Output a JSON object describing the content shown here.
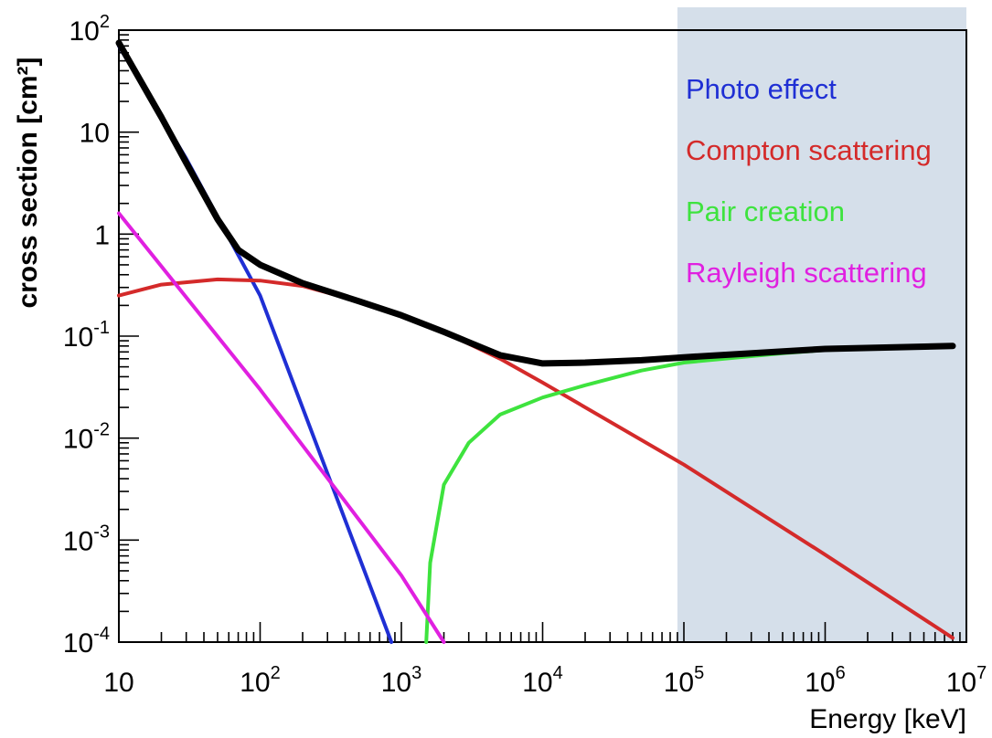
{
  "chart_data": {
    "type": "line",
    "x_scale": "log",
    "y_scale": "log",
    "xlim": [
      10,
      10000000
    ],
    "ylim": [
      0.0001,
      100
    ],
    "xlabel": "Energy [keV]",
    "ylabel": "cross section [cm²]",
    "highlight_region": {
      "x_from": 90000,
      "x_to": 10000000,
      "color": "#d5dfea"
    },
    "x_ticks": [
      {
        "value": 10,
        "base": "10",
        "exp": ""
      },
      {
        "value": 100,
        "base": "10",
        "exp": "2"
      },
      {
        "value": 1000,
        "base": "10",
        "exp": "3"
      },
      {
        "value": 10000,
        "base": "10",
        "exp": "4"
      },
      {
        "value": 100000,
        "base": "10",
        "exp": "5"
      },
      {
        "value": 1000000,
        "base": "10",
        "exp": "6"
      },
      {
        "value": 10000000,
        "base": "10",
        "exp": "7"
      }
    ],
    "y_ticks": [
      {
        "value": 100,
        "base": "10",
        "exp": "2"
      },
      {
        "value": 10,
        "base": "10",
        "exp": ""
      },
      {
        "value": 1,
        "base": "1",
        "exp": ""
      },
      {
        "value": 0.1,
        "base": "10",
        "exp": "-1"
      },
      {
        "value": 0.01,
        "base": "10",
        "exp": "-2"
      },
      {
        "value": 0.001,
        "base": "10",
        "exp": "-3"
      },
      {
        "value": 0.0001,
        "base": "10",
        "exp": "-4"
      }
    ],
    "legend_position": "top-right",
    "series": [
      {
        "name": "Photo effect",
        "color": "#1f2fd4",
        "x": [
          10,
          20,
          30,
          100,
          300,
          850
        ],
        "y": [
          70,
          14,
          5.5,
          0.25,
          0.0045,
          0.0001
        ]
      },
      {
        "name": "Compton scattering",
        "color": "#d42a2a",
        "x": [
          10,
          20,
          50,
          100,
          200,
          500,
          1000,
          2000,
          5000,
          10000,
          100000,
          1000000,
          8000000
        ],
        "y": [
          0.25,
          0.32,
          0.36,
          0.35,
          0.31,
          0.22,
          0.16,
          0.11,
          0.06,
          0.035,
          0.0055,
          0.00072,
          0.00011
        ]
      },
      {
        "name": "Pair creation",
        "color": "#3ee33e",
        "x": [
          1500,
          1600,
          2000,
          3000,
          5000,
          10000,
          20000,
          50000,
          100000,
          500000,
          1000000,
          8000000
        ],
        "y": [
          0.0001,
          0.0006,
          0.0035,
          0.009,
          0.017,
          0.025,
          0.033,
          0.046,
          0.055,
          0.068,
          0.073,
          0.08
        ]
      },
      {
        "name": "Rayleigh scattering",
        "color": "#e020e0",
        "x": [
          10,
          100,
          1000,
          2000
        ],
        "y": [
          1.6,
          0.03,
          0.00045,
          0.0001
        ]
      },
      {
        "name": "",
        "color": "#000000",
        "x": [
          10,
          20,
          30,
          50,
          70,
          100,
          200,
          500,
          1000,
          2000,
          5000,
          10000,
          20000,
          50000,
          100000,
          1000000,
          8000000
        ],
        "y": [
          75,
          14,
          5,
          1.4,
          0.7,
          0.5,
          0.33,
          0.22,
          0.16,
          0.11,
          0.065,
          0.054,
          0.055,
          0.058,
          0.062,
          0.075,
          0.08
        ]
      }
    ]
  }
}
